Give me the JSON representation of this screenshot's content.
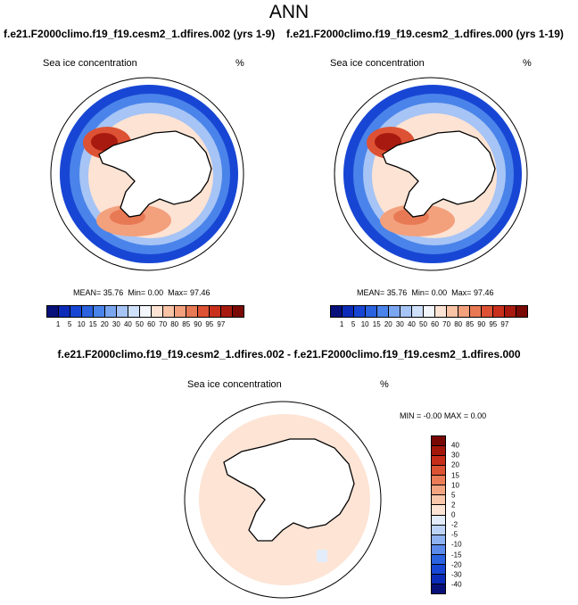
{
  "main_title": "ANN",
  "case_titles": {
    "left": "f.e21.F2000climo.f19_f19.cesm2_1.dfires.002 (yrs 1-9)",
    "right": "f.e21.F2000climo.f19_f19.cesm2_1.dfires.000 (yrs 1-19)"
  },
  "diff_title": "f.e21.F2000climo.f19_f19.cesm2_1.dfires.002 - f.e21.F2000climo.f19_f19.cesm2_1.dfires.000",
  "colors": {
    "mean_scale": [
      "#08107a",
      "#0b2bb8",
      "#1846d4",
      "#2a62e0",
      "#4a84ea",
      "#7aa6f0",
      "#a6c4f5",
      "#cfe0fa",
      "#f3f6fb",
      "#fde3d3",
      "#f9c3a6",
      "#f3a07d",
      "#e87955",
      "#dd5234",
      "#c9301c",
      "#a81a0f",
      "#7a0a05"
    ],
    "diff_scale": [
      "#08107a",
      "#0b2bb8",
      "#1846d4",
      "#2a62e0",
      "#5b8aeb",
      "#8eb2f2",
      "#bcd3f7",
      "#e2ecfb",
      "#fde4d5",
      "#f9c7ac",
      "#f3a582",
      "#ea7d57",
      "#dc5333",
      "#c52d18",
      "#a3170b",
      "#780804"
    ]
  },
  "chart_data": [
    {
      "type": "heatmap",
      "panel": "top-left",
      "projection": "south polar stereographic",
      "title": "Sea ice concentration",
      "units": "%",
      "stats": {
        "mean": "35.76",
        "min": "0.00",
        "max": "97.46"
      },
      "stats_labels": {
        "mean": "MEAN=",
        "min": "Min=",
        "max": "Max="
      },
      "levels": [
        "1",
        "5",
        "10",
        "15",
        "20",
        "30",
        "40",
        "50",
        "60",
        "70",
        "80",
        "85",
        "90",
        "95",
        "97"
      ],
      "legend": "horizontal-bottom"
    },
    {
      "type": "heatmap",
      "panel": "top-right",
      "projection": "south polar stereographic",
      "title": "Sea ice concentration",
      "units": "%",
      "stats": {
        "mean": "35.76",
        "min": "0.00",
        "max": "97.46"
      },
      "stats_labels": {
        "mean": "MEAN=",
        "min": "Min=",
        "max": "Max="
      },
      "levels": [
        "1",
        "5",
        "10",
        "15",
        "20",
        "30",
        "40",
        "50",
        "60",
        "70",
        "80",
        "85",
        "90",
        "95",
        "97"
      ],
      "legend": "horizontal-bottom"
    },
    {
      "type": "heatmap",
      "panel": "bottom-difference",
      "projection": "south polar stereographic",
      "title": "Sea ice concentration",
      "units": "%",
      "stats": {
        "min": "-0.00",
        "max": "0.00"
      },
      "stats_labels": {
        "min": "MIN =",
        "max": "MAX ="
      },
      "levels": [
        "40",
        "30",
        "20",
        "15",
        "10",
        "5",
        "2",
        "0",
        "-2",
        "-5",
        "-10",
        "-15",
        "-20",
        "-30",
        "-40"
      ],
      "legend": "vertical-right"
    }
  ]
}
